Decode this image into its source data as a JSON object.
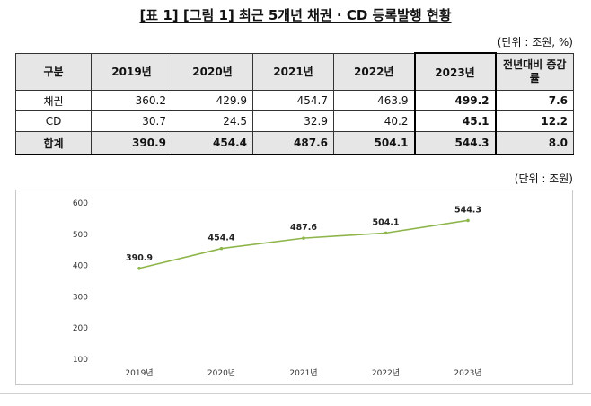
{
  "title": "[표 1] [그림 1] 최근 5개년 채권 · CD 등록발행 현황",
  "table_unit": "(단위 : 조원, %)",
  "table": {
    "headers": [
      "구분",
      "2019년",
      "2020년",
      "2021년",
      "2022년",
      "2023년",
      "전년대비 증감률"
    ],
    "rows": [
      {
        "label": "채권",
        "values": [
          "360.2",
          "429.9",
          "454.7",
          "463.9",
          "499.2",
          "7.6"
        ]
      },
      {
        "label": "CD",
        "values": [
          "30.7",
          "24.5",
          "32.9",
          "40.2",
          "45.1",
          "12.2"
        ]
      },
      {
        "label": "합계",
        "values": [
          "390.9",
          "454.4",
          "487.6",
          "504.1",
          "544.3",
          "8.0"
        ]
      }
    ]
  },
  "chart_unit": "(단위 : 조원)",
  "chart_data": {
    "type": "line",
    "categories": [
      "2019년",
      "2020년",
      "2021년",
      "2022년",
      "2023년"
    ],
    "series": [
      {
        "values": [
          390.9,
          454.4,
          487.6,
          504.1,
          544.3
        ]
      }
    ],
    "data_labels": [
      "390.9",
      "454.4",
      "487.6",
      "504.1",
      "544.3"
    ],
    "yticks": [
      "600",
      "500",
      "400",
      "300",
      "200",
      "100"
    ],
    "ylim": [
      100,
      600
    ],
    "grid": false,
    "line_color": "#8db54a",
    "title": "",
    "xlabel": "",
    "ylabel": ""
  }
}
